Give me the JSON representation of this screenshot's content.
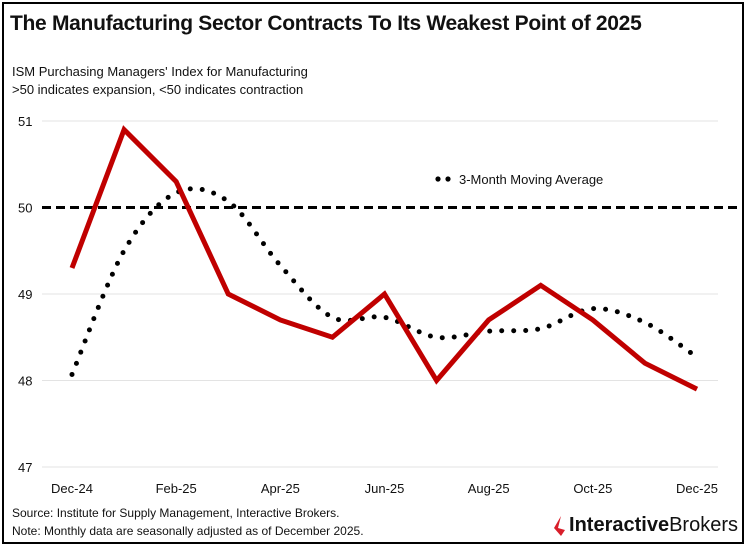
{
  "chart_data": {
    "type": "line",
    "title": "The Manufacturing Sector Contracts To Its Weakest Point of 2025",
    "subtitle": [
      "ISM Purchasing Managers' Index for Manufacturing",
      ">50 indicates expansion, <50 indicates contraction"
    ],
    "x": [
      "Dec-24",
      "Jan-25",
      "Feb-25",
      "Mar-25",
      "Apr-25",
      "May-25",
      "Jun-25",
      "Jul-25",
      "Aug-25",
      "Sep-25",
      "Oct-25",
      "Nov-25",
      "Dec-25"
    ],
    "x_tick_labels": [
      "Dec-24",
      "Feb-25",
      "Apr-25",
      "Jun-25",
      "Aug-25",
      "Oct-25",
      "Dec-25"
    ],
    "y_ticks": [
      47,
      48,
      49,
      50,
      51
    ],
    "ylim": [
      47,
      51
    ],
    "grid": "horizontal",
    "reference_line": {
      "value": 50,
      "style": "dashed",
      "color": "#000000"
    },
    "series": [
      {
        "values": [
          49.3,
          50.9,
          50.3,
          49.0,
          48.7,
          48.5,
          49.0,
          48.0,
          48.7,
          49.1,
          48.7,
          48.2,
          47.9
        ],
        "color": "#c00000",
        "style": "solid"
      },
      {
        "name": "3-Month Moving Average",
        "values": [
          48.07,
          49.5,
          50.17,
          50.07,
          49.33,
          48.73,
          48.73,
          48.5,
          48.57,
          48.6,
          48.83,
          48.67,
          48.27
        ],
        "color": "#000000",
        "style": "dotted"
      }
    ],
    "legend": "top-right"
  },
  "footer": {
    "source": "Source: Institute for Supply Management, Interactive Brokers.",
    "note": "Note: Monthly data are seasonally adjusted as of December 2025."
  },
  "logo": {
    "part1": "Interactive",
    "part2": "Brokers",
    "color": "#d81e2a"
  }
}
